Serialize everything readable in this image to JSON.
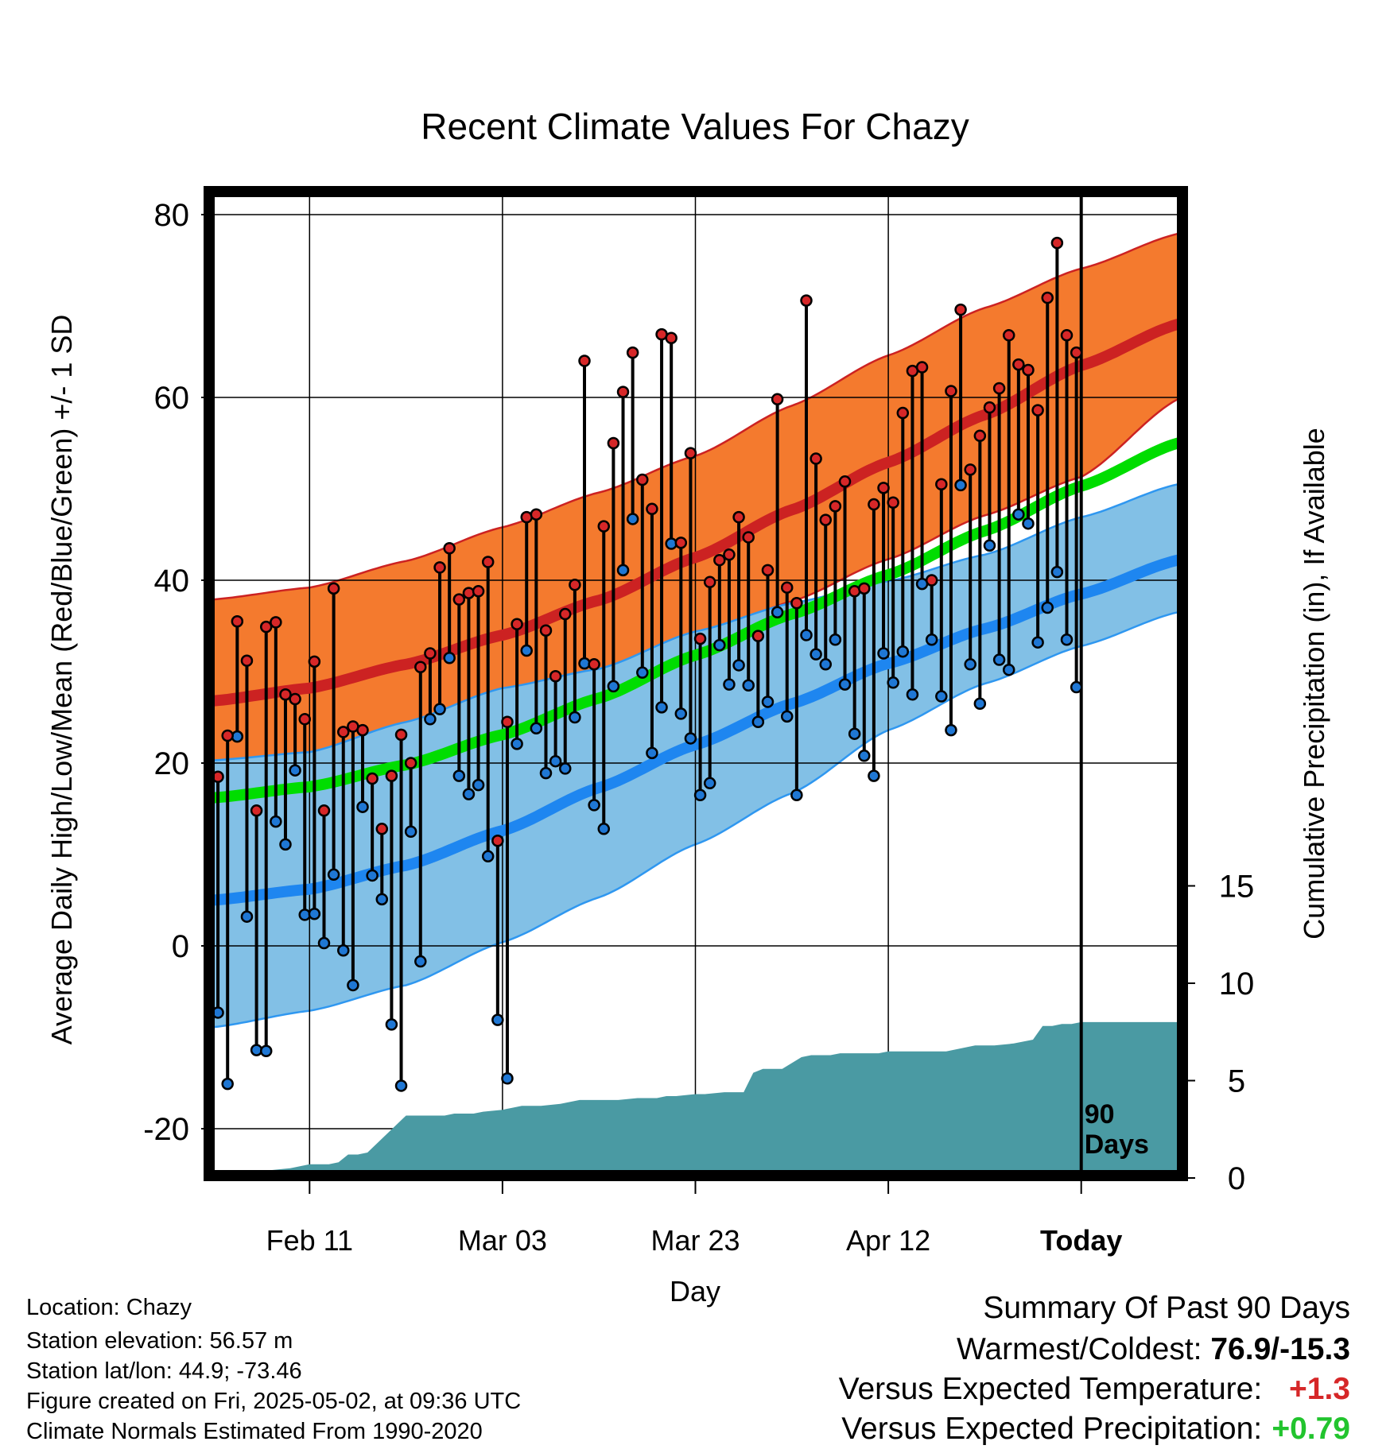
{
  "chart_data": {
    "type": "line",
    "title": "Recent Climate Values For Chazy",
    "xlabel": "Day",
    "ylabel": "Average Daily High/Low/Mean (Red/Blue/Green) +/- 1 SD",
    "y2label": "Cumulative Precipitation (in), If Available",
    "ylim": [
      -25,
      83
    ],
    "y2lim": [
      0,
      16.0
    ],
    "y_ticks": [
      "80",
      "60",
      "40",
      "20",
      "0",
      "-20"
    ],
    "y2_ticks": [
      "15",
      "10",
      "5",
      "0"
    ],
    "x_ticks": [
      {
        "day": 10,
        "label": "Feb 11",
        "bold": false
      },
      {
        "day": 30,
        "label": "Mar 03",
        "bold": false
      },
      {
        "day": 50,
        "label": "Mar 23",
        "bold": false
      },
      {
        "day": 70,
        "label": "Apr 12",
        "bold": false
      },
      {
        "day": 90,
        "label": "Today",
        "bold": true
      }
    ],
    "xlim": [
      0,
      100
    ],
    "today_day": 90,
    "today_marker": [
      "90",
      "Days"
    ],
    "grid": true,
    "normals": {
      "days": [
        0,
        10,
        20,
        30,
        40,
        50,
        60,
        70,
        80,
        90,
        100
      ],
      "high_plus_sd": [
        37.9,
        39.2,
        42.1,
        45.8,
        49.6,
        53.6,
        59.1,
        64.6,
        69.8,
        74.1,
        77.9
      ],
      "high_mean": [
        26.8,
        28.2,
        30.8,
        34.0,
        37.8,
        42.5,
        47.7,
        52.9,
        58.1,
        63.5,
        68.0
      ],
      "high_minus_sd": [
        19.7,
        20.6,
        23.9,
        27.8,
        29.8,
        33.5,
        37.7,
        42.3,
        47.1,
        51.3,
        59.8
      ],
      "avg_mean": [
        16.2,
        17.4,
        19.8,
        23.1,
        27.1,
        31.8,
        36.3,
        40.6,
        45.4,
        50.3,
        55.0
      ],
      "low_plus_sd": [
        20.3,
        21.2,
        24.5,
        28.2,
        30.3,
        34.4,
        37.5,
        39.9,
        42.8,
        46.9,
        50.5
      ],
      "low_mean": [
        5.0,
        6.2,
        8.8,
        12.6,
        17.3,
        22.0,
        26.5,
        30.9,
        34.7,
        38.5,
        42.2
      ],
      "low_minus_sd": [
        -8.9,
        -7.1,
        -4.3,
        0.4,
        5.3,
        11.1,
        16.7,
        23.6,
        28.7,
        32.8,
        36.5
      ]
    },
    "series": [
      {
        "name": "Daily High",
        "color": "#d62728",
        "values": [
          18.5,
          23.0,
          35.5,
          31.2,
          14.8,
          34.9,
          35.4,
          27.5,
          27.0,
          24.8,
          31.1,
          14.8,
          39.1,
          23.4,
          24.0,
          23.6,
          18.3,
          12.8,
          18.6,
          23.1,
          20.0,
          30.5,
          32.0,
          41.4,
          43.5,
          37.9,
          38.6,
          38.8,
          42.0,
          11.5,
          24.5,
          35.2,
          46.9,
          47.2,
          34.5,
          29.5,
          36.3,
          39.5,
          64.0,
          30.8,
          45.9,
          55.0,
          60.6,
          64.9,
          51.0,
          47.8,
          66.9,
          66.5,
          44.1,
          53.9,
          33.6,
          39.8,
          42.2,
          42.8,
          46.9,
          44.7,
          33.9,
          41.1,
          59.8,
          39.2,
          37.5,
          70.6,
          53.3,
          46.6,
          48.1,
          50.8,
          38.8,
          39.1,
          48.3,
          50.1,
          48.5,
          58.3,
          62.9,
          63.3,
          40.0,
          50.5,
          60.7,
          69.6,
          52.1,
          55.8,
          58.9,
          61.0,
          66.8,
          63.6,
          63.0,
          58.6,
          70.9,
          76.9,
          66.8,
          64.9
        ]
      },
      {
        "name": "Daily Low",
        "color": "#1f77d4",
        "values": [
          -7.3,
          -15.1,
          22.9,
          3.2,
          -11.4,
          -11.5,
          13.6,
          11.1,
          19.2,
          3.4,
          3.5,
          0.3,
          7.8,
          -0.5,
          -4.3,
          15.2,
          7.7,
          5.1,
          -8.6,
          -15.3,
          12.5,
          -1.7,
          24.8,
          25.9,
          31.5,
          18.6,
          16.6,
          17.6,
          9.8,
          -8.1,
          -14.5,
          22.1,
          32.3,
          23.8,
          18.9,
          20.2,
          19.4,
          25.0,
          30.9,
          15.4,
          12.8,
          28.4,
          41.1,
          46.7,
          29.9,
          21.1,
          26.1,
          44.0,
          25.4,
          22.7,
          16.5,
          17.8,
          32.9,
          28.6,
          30.7,
          28.5,
          24.5,
          26.7,
          36.5,
          25.1,
          16.5,
          34.0,
          31.9,
          30.8,
          33.5,
          28.6,
          23.2,
          20.8,
          18.6,
          32.0,
          28.8,
          32.2,
          27.5,
          39.6,
          33.5,
          27.3,
          23.6,
          50.4,
          30.8,
          26.5,
          43.8,
          31.3,
          30.2,
          47.2,
          46.2,
          33.2,
          37.0,
          40.9,
          33.5,
          28.3
        ]
      }
    ],
    "precip": {
      "name": "Cumulative Precipitation",
      "color": "#4a9aa3",
      "days": [
        0,
        5,
        6,
        8,
        9,
        10,
        11,
        12,
        13,
        14,
        15,
        16,
        20,
        24,
        25,
        27,
        28,
        30,
        31,
        32,
        34,
        36,
        38,
        42,
        44,
        46,
        47,
        48,
        50,
        51,
        53,
        55,
        56,
        57,
        59,
        61,
        62,
        64,
        65,
        67,
        69,
        70,
        72,
        74,
        76,
        77,
        78,
        79,
        81,
        83,
        84,
        85,
        86,
        87,
        88,
        89,
        90,
        100
      ],
      "values": [
        0,
        0,
        0.2,
        0.3,
        0.4,
        0.5,
        0.5,
        0.5,
        0.6,
        1.0,
        1.0,
        1.1,
        3.0,
        3.0,
        3.1,
        3.1,
        3.2,
        3.3,
        3.4,
        3.5,
        3.5,
        3.6,
        3.8,
        3.8,
        3.9,
        3.9,
        4.0,
        4.0,
        4.1,
        4.1,
        4.2,
        4.2,
        5.2,
        5.4,
        5.4,
        6.0,
        6.1,
        6.1,
        6.2,
        6.2,
        6.2,
        6.3,
        6.3,
        6.3,
        6.3,
        6.4,
        6.5,
        6.6,
        6.6,
        6.7,
        6.8,
        6.9,
        7.6,
        7.6,
        7.7,
        7.7,
        7.8,
        7.8
      ]
    }
  },
  "colors": {
    "high_band": "#f47a2e",
    "high_line": "#cc2222",
    "high_overlap": "#8b1111",
    "low_band": "#82c0e6",
    "low_line": "#1e86f0",
    "low_edge": "#2f97f0",
    "mean_line": "#00dd00",
    "precip": "#4a9aa3",
    "frame": "#000000",
    "warm_text": "#d62728",
    "wet_text": "#22c42e"
  },
  "info": {
    "location": "Location: Chazy",
    "elevation": "Station elevation: 56.57 m",
    "latlon": "Station lat/lon: 44.9; -73.46",
    "created": "Figure created on Fri, 2025-05-02, at 09:36 UTC",
    "normals": "Climate Normals Estimated From 1990-2020"
  },
  "summary": {
    "title": "Summary Of Past 90 Days",
    "warmest_label": "Warmest/Coldest:",
    "warmest_value": "76.9/-15.3",
    "temp_label": "Versus Expected Temperature:",
    "temp_value": "+1.3",
    "precip_label": "Versus Expected Precipitation:",
    "precip_value": "+0.79"
  }
}
